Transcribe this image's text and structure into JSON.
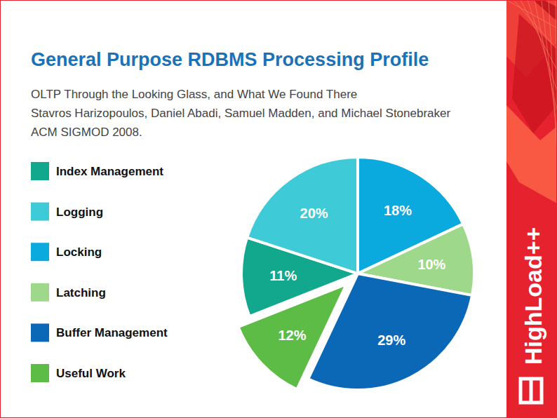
{
  "chart_data": {
    "type": "pie",
    "title": "General Purpose RDBMS Processing Profile",
    "subtitle": [
      "OLTP Through the Looking Glass, and What We Found There",
      "Stavros Harizopoulos, Daniel Abadi, Samuel Madden, and Michael Stonebraker",
      "ACM SIGMOD 2008."
    ],
    "categories": [
      "Index Management",
      "Logging",
      "Locking",
      "Latching",
      "Buffer Management",
      "Useful Work"
    ],
    "values": [
      11,
      20,
      18,
      10,
      29,
      12
    ],
    "value_labels": [
      "11%",
      "20%",
      "18%",
      "10%",
      "29%",
      "12%"
    ],
    "colors": [
      "#12a88e",
      "#3ecad7",
      "#0aaadf",
      "#9ed88a",
      "#0b68b6",
      "#5cbc46"
    ],
    "data_labels": true,
    "legend": "left"
  },
  "slide": {
    "brand": "HighLoad++"
  }
}
